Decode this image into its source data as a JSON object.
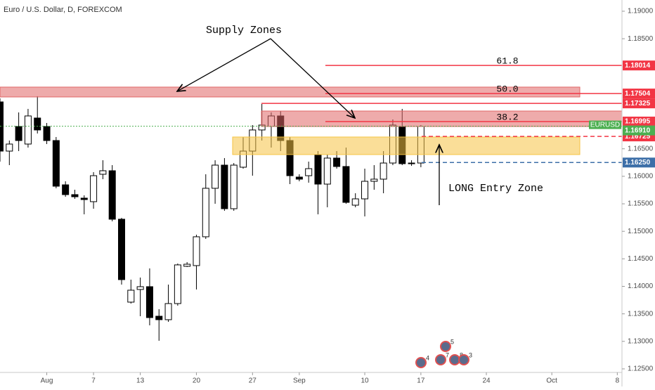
{
  "chart_data": {
    "type": "candlestick",
    "title": "Euro / U.S. Dollar, D, FOREXCOM",
    "open": [
      1.17352,
      1.16458,
      1.16905,
      1.16586,
      1.17059,
      1.16905,
      1.1665,
      1.15845,
      1.15667,
      1.15603,
      1.15539,
      1.16037,
      1.16101,
      1.1522,
      1.13713,
      1.13943,
      1.13994,
      1.13457,
      1.13394,
      1.13687,
      1.14364,
      1.14377,
      1.14901,
      1.15782,
      1.16203,
      1.15411,
      1.16165,
      1.16458,
      1.16842,
      1.16905,
      1.17097,
      1.1665,
      1.15986,
      1.16011,
      1.16395,
      1.15858,
      1.16331,
      1.16178,
      1.15475,
      1.1559,
      1.15909,
      1.15948,
      1.16241,
      1.16905,
      1.16241,
      1.16241
    ],
    "high": [
      1.17416,
      1.1665,
      1.17161,
      1.17225,
      1.17455,
      1.16969,
      1.16714,
      1.15909,
      1.15756,
      1.15654,
      1.16075,
      1.16292,
      1.16203,
      1.15245,
      1.14122,
      1.1416,
      1.14326,
      1.13585,
      1.14032,
      1.14415,
      1.14441,
      1.14939,
      1.16037,
      1.16292,
      1.16331,
      1.16241,
      1.16714,
      1.16931,
      1.17314,
      1.17161,
      1.17186,
      1.16714,
      1.16037,
      1.16267,
      1.16458,
      1.16395,
      1.16458,
      1.16522,
      1.15692,
      1.16139,
      1.16203,
      1.16458,
      1.17033,
      1.17225,
      1.16292,
      1.16931
    ],
    "low": [
      1.16267,
      1.16203,
      1.16458,
      1.16522,
      1.16778,
      1.16586,
      1.15782,
      1.15628,
      1.1559,
      1.15309,
      1.15411,
      1.15948,
      1.15181,
      1.14032,
      1.13687,
      1.13457,
      1.13291,
      1.13011,
      1.13355,
      1.13649,
      1.14351,
      1.13943,
      1.14862,
      1.15501,
      1.15373,
      1.15373,
      1.16139,
      1.16011,
      1.1665,
      1.16522,
      1.16458,
      1.15858,
      1.15909,
      1.15884,
      1.15309,
      1.15437,
      1.16139,
      1.15501,
      1.15437,
      1.15271,
      1.15756,
      1.15692,
      1.16203,
      1.16203,
      1.1619,
      1.16165
    ],
    "close": [
      1.16458,
      1.16586,
      1.1665,
      1.17097,
      1.16842,
      1.1665,
      1.1582,
      1.15667,
      1.15628,
      1.15577,
      1.16011,
      1.16101,
      1.1522,
      1.14122,
      1.1393,
      1.13994,
      1.13432,
      1.13394,
      1.13687,
      1.1439,
      1.14402,
      1.14901,
      1.15782,
      1.16203,
      1.15411,
      1.16203,
      1.16458,
      1.16842,
      1.16931,
      1.17097,
      1.1665,
      1.16011,
      1.15948,
      1.16139,
      1.15858,
      1.16331,
      1.16178,
      1.15526,
      1.1559,
      1.15909,
      1.15948,
      1.16241,
      1.16931,
      1.16229,
      1.16229,
      1.16905
    ],
    "up_color": "#ffffff",
    "down_color": "#000000",
    "xlim": [
      0,
      66.5
    ],
    "xticks": [
      {
        "value": 5,
        "label": "Aug"
      },
      {
        "value": 10,
        "label": "7"
      },
      {
        "value": 15,
        "label": "13"
      },
      {
        "value": 21,
        "label": "20"
      },
      {
        "value": 27,
        "label": "27"
      },
      {
        "value": 32,
        "label": "Sep"
      },
      {
        "value": 39,
        "label": "10"
      },
      {
        "value": 45,
        "label": "17"
      },
      {
        "value": 52,
        "label": "24"
      },
      {
        "value": 59,
        "label": "Oct"
      },
      {
        "value": 66,
        "label": "8"
      }
    ],
    "ylim": [
      1.1218,
      1.19204
    ],
    "yticks": [
      {
        "value": 1.19,
        "label": "1.19000"
      },
      {
        "value": 1.185,
        "label": "1.18500"
      },
      {
        "value": 1.165,
        "label": "1.16500"
      },
      {
        "value": 1.16,
        "label": "1.16000"
      },
      {
        "value": 1.155,
        "label": "1.15500"
      },
      {
        "value": 1.15,
        "label": "1.15000"
      },
      {
        "value": 1.145,
        "label": "1.14500"
      },
      {
        "value": 1.14,
        "label": "1.14000"
      },
      {
        "value": 1.135,
        "label": "1.13500"
      },
      {
        "value": 1.13,
        "label": "1.13000"
      },
      {
        "value": 1.125,
        "label": "1.12500"
      }
    ],
    "zones": [
      {
        "from": 1.17621,
        "to": 1.17442,
        "color": "#e06666"
      },
      {
        "from": 1.17186,
        "to": 1.16905,
        "color": "#e06666"
      },
      {
        "from": 1.16714,
        "to": 1.16395,
        "color": "#f6c343"
      }
    ],
    "fib_levels": [
      {
        "value": 1.18014,
        "label": "61.8",
        "price_label": "1.18014"
      },
      {
        "value": 1.17504,
        "label": "50.0",
        "price_label": "1.17504"
      },
      {
        "value": 1.16995,
        "label": "38.2",
        "price_label": "1.16995"
      }
    ],
    "fib_color": "#f23645",
    "levels": [
      {
        "value": 1.17325,
        "label": "1.17325",
        "color": "#f23645",
        "style": "solid"
      },
      {
        "value": 1.16725,
        "label": "1.16725",
        "color": "#f23645",
        "style": "dashed"
      },
      {
        "value": 1.1625,
        "label": "1.16250",
        "color": "#3d6fa8",
        "style": "dashed"
      }
    ],
    "last_price": {
      "name": "EURUSD",
      "value": 1.1691,
      "label": "1.16910",
      "color": "#4caf50"
    },
    "annotations": [
      "Supply Zones",
      "LONG Entry Zone"
    ],
    "events": [
      "4",
      "5",
      "7",
      "8",
      "3"
    ]
  }
}
